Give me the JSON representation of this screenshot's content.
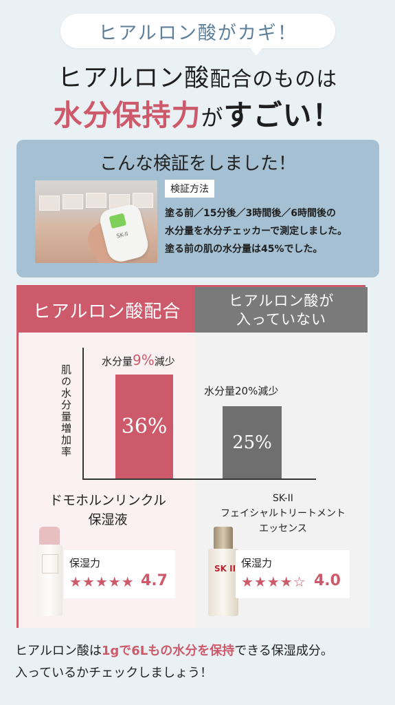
{
  "pill": "ヒアルロン酸がカギ！",
  "headline": {
    "line1_main": "ヒアルロン酸",
    "line1_small1": "配合",
    "line1_mid": "の",
    "line1_end": "ものは",
    "line2_red": "水分保持力",
    "line2_small": "が",
    "line2_end": "すごい！"
  },
  "method": {
    "title": "こんな検証をしました！",
    "label": "検証方法",
    "lines": [
      "塗る前／15分後／3時間後／6時間後の",
      "水分量を水分チェッカーで測定しました。",
      "塗る前の肌の水分量は45%でした。"
    ],
    "device_label": "SK-II"
  },
  "comparison": {
    "left_header": "ヒアルロン酸配合",
    "right_header_line1": "ヒアルロン酸が",
    "right_header_line2": "入っていない",
    "y_label": "肌の水分量増加率",
    "left_note_prefix": "水分量",
    "left_note_value": "9%",
    "left_note_suffix": "減少",
    "right_note": "水分量20%減少",
    "chart_data": {
      "type": "bar",
      "categories": [
        "ヒアルロン酸配合",
        "ヒアルロン酸が入っていない"
      ],
      "values": [
        36,
        25
      ],
      "value_labels": [
        "36%",
        "25%"
      ],
      "unit": "%",
      "ylabel": "肌の水分量増加率",
      "colors": [
        "#cc5a6b",
        "#6f6f6f"
      ]
    }
  },
  "products": [
    {
      "name_line1": "ドモホルンリンクル",
      "name_line2": "保湿液",
      "rating_label": "保湿力",
      "stars": "★★★★★",
      "rating": "4.7"
    },
    {
      "name_line1": "SK-II",
      "name_line2": "フェイシャルトリートメント",
      "name_line3": "エッセンス",
      "rating_label": "保湿力",
      "stars_full": "★★★★",
      "stars_empty": "☆",
      "rating": "4.0",
      "logo": "SK II"
    }
  ],
  "footer": {
    "p1": "ヒアルロン酸は",
    "p2_red": "1gで6Lもの水分を保持",
    "p3": "できる保湿成分。",
    "line2": "入っているかチェックしましょう！"
  }
}
